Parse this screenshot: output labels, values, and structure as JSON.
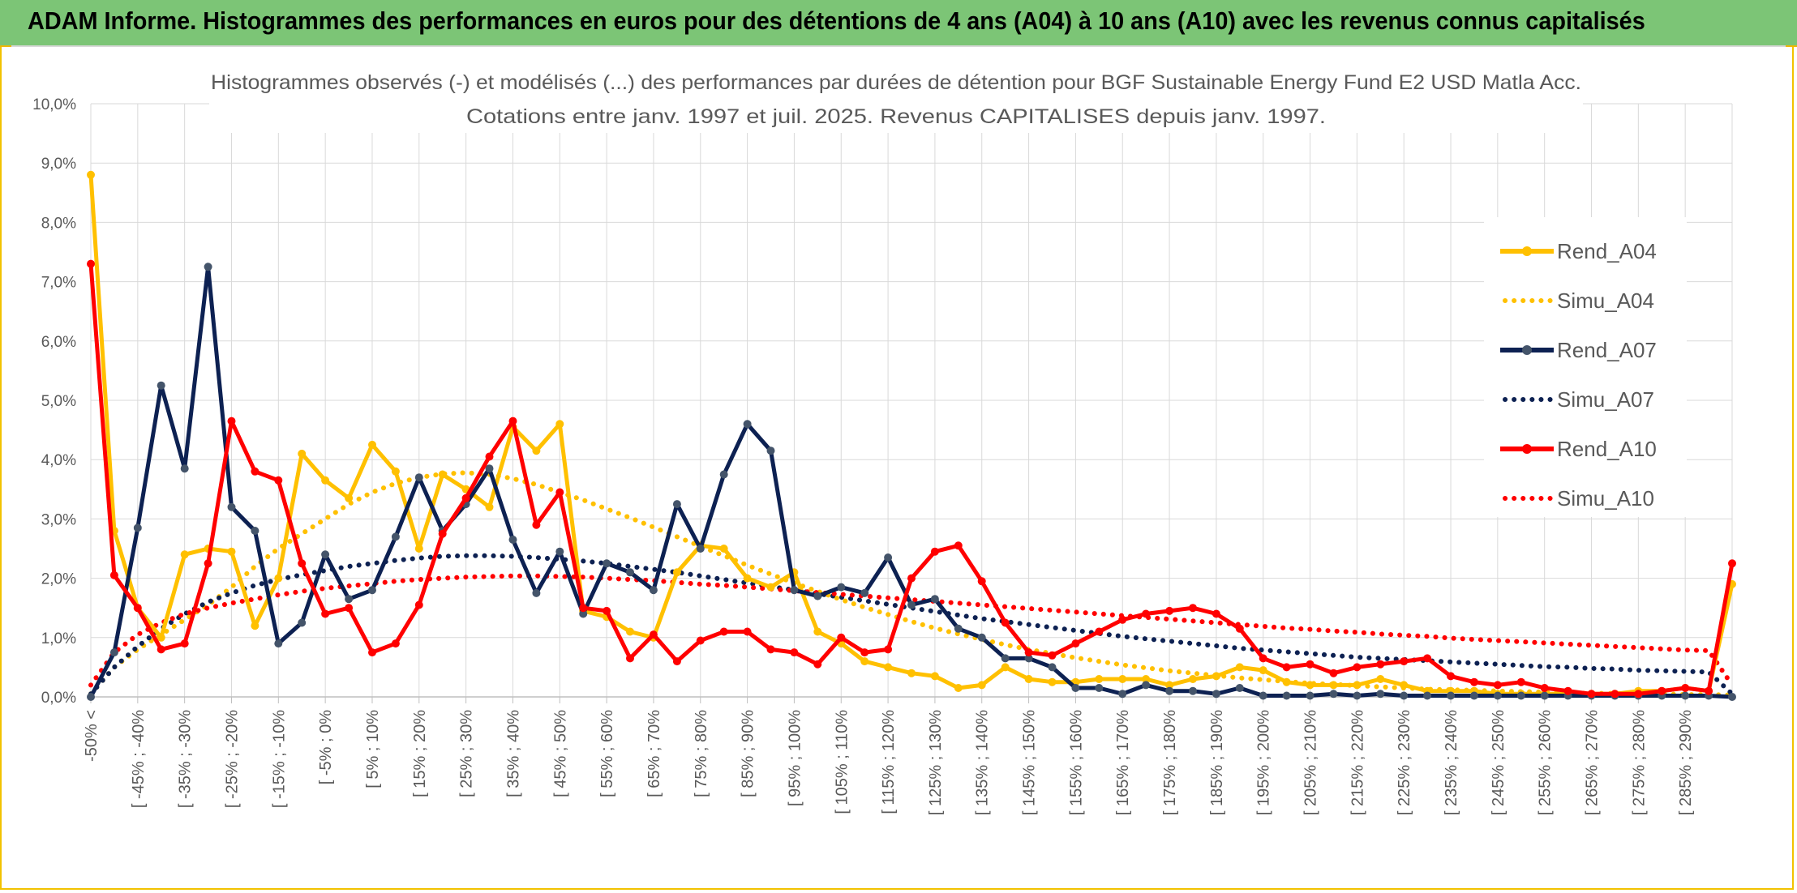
{
  "banner": {
    "title": "ADAM Informe. Histogrammes des performances en euros pour des détentions de 4 ans (A04) à 10 ans (A10) avec les revenus connus capitalisés"
  },
  "colors": {
    "banner_bg": "#7cc576",
    "frame": "#f2c200",
    "a04": "#ffc000",
    "a07": "#0d2152",
    "a10": "#ff0000",
    "grid": "#d9d9d9",
    "text": "#595959"
  },
  "chart_data": {
    "type": "line",
    "title": "Histogrammes observés (-) et modélisés (...) des performances par durées de détention pour BGF Sustainable Energy Fund E2 USD Matla Acc.",
    "subtitle": "Cotations entre janv. 1997 et juil. 2025. Revenus CAPITALISES depuis janv. 1997.",
    "xlabel": "",
    "ylabel": "",
    "ylim": [
      0,
      10
    ],
    "y_ticks": [
      "0,0%",
      "1,0%",
      "2,0%",
      "3,0%",
      "4,0%",
      "5,0%",
      "6,0%",
      "7,0%",
      "8,0%",
      "9,0%",
      "10,0%"
    ],
    "grid": "vertical and horizontal",
    "legend_position": "right",
    "categories": [
      "-50% <",
      "[ -50% ; -45%",
      "[ -45% ; -40%",
      "[ -40% ; -35%",
      "[ -35% ; -30%",
      "[ -30% ; -25%",
      "[ -25% ; -20%",
      "[ -20% ; -15%",
      "[ -15% ; -10%",
      "[ -10% ; -5%",
      "[ -5% ; 0%",
      "[ 0% ; 5%",
      "[ 5% ; 10%",
      "[ 10% ; 15%",
      "[ 15% ; 20%",
      "[ 20% ; 25%",
      "[ 25% ; 30%",
      "[ 30% ; 35%",
      "[ 35% ; 40%",
      "[ 40% ; 45%",
      "[ 45% ; 50%",
      "[ 50% ; 55%",
      "[ 55% ; 60%",
      "[ 60% ; 65%",
      "[ 65% ; 70%",
      "[ 70% ; 75%",
      "[ 75% ; 80%",
      "[ 80% ; 85%",
      "[ 85% ; 90%",
      "[ 90% ; 95%",
      "[ 95% ; 100%",
      "[ 100% ; 105%",
      "[ 105% ; 110%",
      "[ 110% ; 115%",
      "[ 115% ; 120%",
      "[ 120% ; 125%",
      "[ 125% ; 130%",
      "[ 130% ; 135%",
      "[ 135% ; 140%",
      "[ 140% ; 145%",
      "[ 145% ; 150%",
      "[ 150% ; 155%",
      "[ 155% ; 160%",
      "[ 160% ; 165%",
      "[ 165% ; 170%",
      "[ 170% ; 175%",
      "[ 175% ; 180%",
      "[ 180% ; 185%",
      "[ 185% ; 190%",
      "[ 190% ; 195%",
      "[ 195% ; 200%",
      "[ 200% ; 205%",
      "[ 205% ; 210%",
      "[ 210% ; 215%",
      "[ 215% ; 220%",
      "[ 220% ; 225%",
      "[ 225% ; 230%",
      "[ 230% ; 235%",
      "[ 235% ; 240%",
      "[ 240% ; 245%",
      "[ 245% ; 250%",
      "[ 250% ; 255%",
      "[ 255% ; 260%",
      "[ 260% ; 265%",
      "[ 265% ; 270%",
      "[ 270% ; 275%",
      "[ 275% ; 280%",
      "[ 280% ; 285%",
      "[ 285% ; 290%",
      "[ 290% ; 295%",
      "[ 295% ; 300%"
    ],
    "tick_labels": [
      "-50% <",
      "[ -45% ; -40%",
      "[ -35% ; -30%",
      "[ -25% ; -20%",
      "[ -15% ; -10%",
      "[ -5% ; 0%",
      "[ 5% ; 10%",
      "[ 15% ; 20%",
      "[ 25% ; 30%",
      "[ 35% ; 40%",
      "[ 45% ; 50%",
      "[ 55% ; 60%",
      "[ 65% ; 70%",
      "[ 75% ; 80%",
      "[ 85% ; 90%",
      "[ 95% ; 100%",
      "[ 105% ; 110%",
      "[ 115% ; 120%",
      "[ 125% ; 130%",
      "[ 135% ; 140%",
      "[ 145% ; 150%",
      "[ 155% ; 160%",
      "[ 165% ; 170%",
      "[ 175% ; 180%",
      "[ 185% ; 190%",
      "[ 195% ; 200%",
      "[ 205% ; 210%",
      "[ 215% ; 220%",
      "[ 225% ; 230%",
      "[ 235% ; 240%",
      "[ 245% ; 250%",
      "[ 255% ; 260%",
      "[ 265% ; 270%",
      "[ 275% ; 280%",
      "[ 285% ; 290%"
    ],
    "series": [
      {
        "name": "Rend_A04",
        "style": "solid",
        "color": "#ffc000",
        "values": [
          8.8,
          2.8,
          1.5,
          1.0,
          2.4,
          2.5,
          2.45,
          1.2,
          2.0,
          4.1,
          3.65,
          3.35,
          4.25,
          3.8,
          2.5,
          3.75,
          3.5,
          3.2,
          4.55,
          4.15,
          4.6,
          1.45,
          1.35,
          1.1,
          1.0,
          2.1,
          2.55,
          2.5,
          2.0,
          1.85,
          2.1,
          1.1,
          0.9,
          0.6,
          0.5,
          0.4,
          0.35,
          0.15,
          0.2,
          0.5,
          0.3,
          0.25,
          0.25,
          0.3,
          0.3,
          0.3,
          0.2,
          0.3,
          0.35,
          0.5,
          0.45,
          0.25,
          0.2,
          0.2,
          0.2,
          0.3,
          0.2,
          0.1,
          0.1,
          0.1,
          0.05,
          0.05,
          0.05,
          0.05,
          0.05,
          0.05,
          0.1,
          0.1,
          0.15,
          0.1,
          1.9
        ]
      },
      {
        "name": "Simu_A04",
        "style": "dotted",
        "color": "#ffc000",
        "values": [
          0.05,
          0.5,
          0.8,
          1.05,
          1.3,
          1.55,
          1.85,
          2.2,
          2.5,
          2.75,
          3.0,
          3.25,
          3.45,
          3.6,
          3.7,
          3.76,
          3.78,
          3.75,
          3.68,
          3.58,
          3.45,
          3.32,
          3.17,
          3.02,
          2.86,
          2.7,
          2.54,
          2.38,
          2.22,
          2.07,
          1.92,
          1.78,
          1.64,
          1.51,
          1.39,
          1.27,
          1.16,
          1.06,
          0.97,
          0.88,
          0.8,
          0.73,
          0.66,
          0.6,
          0.54,
          0.49,
          0.44,
          0.4,
          0.36,
          0.32,
          0.29,
          0.26,
          0.23,
          0.21,
          0.19,
          0.17,
          0.15,
          0.13,
          0.12,
          0.11,
          0.1,
          0.09,
          0.08,
          0.07,
          0.06,
          0.06,
          0.05,
          0.05,
          0.04,
          0.04,
          0.03
        ]
      },
      {
        "name": "Rend_A07",
        "style": "solid",
        "color": "#0d2152",
        "values": [
          0.0,
          0.75,
          2.85,
          5.25,
          3.85,
          7.25,
          3.2,
          2.8,
          0.9,
          1.25,
          2.4,
          1.65,
          1.8,
          2.7,
          3.7,
          2.8,
          3.25,
          3.85,
          2.65,
          1.75,
          2.45,
          1.4,
          2.25,
          2.1,
          1.8,
          3.25,
          2.5,
          3.75,
          4.6,
          4.15,
          1.8,
          1.7,
          1.85,
          1.75,
          2.35,
          1.55,
          1.65,
          1.15,
          1.0,
          0.65,
          0.65,
          0.5,
          0.15,
          0.15,
          0.05,
          0.2,
          0.1,
          0.1,
          0.05,
          0.15,
          0.02,
          0.02,
          0.02,
          0.05,
          0.02,
          0.05,
          0.02,
          0.02,
          0.02,
          0.02,
          0.02,
          0.02,
          0.02,
          0.02,
          0.02,
          0.02,
          0.02,
          0.02,
          0.02,
          0.02,
          0.0
        ]
      },
      {
        "name": "Simu_A07",
        "style": "dotted",
        "color": "#0d2152",
        "values": [
          0.05,
          0.5,
          0.85,
          1.15,
          1.4,
          1.6,
          1.75,
          1.88,
          1.98,
          2.06,
          2.13,
          2.2,
          2.25,
          2.3,
          2.34,
          2.37,
          2.38,
          2.38,
          2.37,
          2.35,
          2.32,
          2.29,
          2.25,
          2.2,
          2.15,
          2.1,
          2.04,
          1.98,
          1.92,
          1.86,
          1.8,
          1.74,
          1.68,
          1.62,
          1.56,
          1.5,
          1.44,
          1.38,
          1.32,
          1.27,
          1.22,
          1.17,
          1.12,
          1.07,
          1.02,
          0.98,
          0.94,
          0.9,
          0.86,
          0.82,
          0.79,
          0.76,
          0.73,
          0.7,
          0.67,
          0.65,
          0.63,
          0.61,
          0.59,
          0.57,
          0.55,
          0.53,
          0.51,
          0.5,
          0.48,
          0.47,
          0.45,
          0.44,
          0.43,
          0.42,
          0.05
        ]
      },
      {
        "name": "Rend_A10",
        "style": "solid",
        "color": "#ff0000",
        "values": [
          7.3,
          2.05,
          1.5,
          0.8,
          0.9,
          2.25,
          4.65,
          3.8,
          3.65,
          2.25,
          1.4,
          1.5,
          0.75,
          0.9,
          1.55,
          2.75,
          3.35,
          4.05,
          4.65,
          2.9,
          3.45,
          1.5,
          1.45,
          0.65,
          1.05,
          0.6,
          0.95,
          1.1,
          1.1,
          0.8,
          0.75,
          0.55,
          1.0,
          0.75,
          0.8,
          2.0,
          2.45,
          2.55,
          1.95,
          1.25,
          0.75,
          0.7,
          0.9,
          1.1,
          1.3,
          1.4,
          1.45,
          1.5,
          1.4,
          1.15,
          0.65,
          0.5,
          0.55,
          0.4,
          0.5,
          0.55,
          0.6,
          0.65,
          0.35,
          0.25,
          0.2,
          0.25,
          0.15,
          0.1,
          0.05,
          0.05,
          0.05,
          0.1,
          0.15,
          0.1,
          2.25
        ]
      },
      {
        "name": "Simu_A10",
        "style": "dotted",
        "color": "#ff0000",
        "values": [
          0.2,
          0.75,
          1.05,
          1.25,
          1.4,
          1.5,
          1.58,
          1.65,
          1.72,
          1.78,
          1.83,
          1.87,
          1.91,
          1.95,
          1.98,
          2.0,
          2.02,
          2.03,
          2.04,
          2.04,
          2.03,
          2.02,
          2.0,
          1.98,
          1.96,
          1.93,
          1.9,
          1.88,
          1.85,
          1.82,
          1.79,
          1.76,
          1.73,
          1.7,
          1.67,
          1.64,
          1.61,
          1.58,
          1.55,
          1.52,
          1.49,
          1.46,
          1.43,
          1.4,
          1.37,
          1.34,
          1.31,
          1.28,
          1.25,
          1.22,
          1.19,
          1.16,
          1.14,
          1.11,
          1.09,
          1.06,
          1.04,
          1.02,
          0.99,
          0.97,
          0.95,
          0.93,
          0.91,
          0.89,
          0.87,
          0.85,
          0.83,
          0.81,
          0.79,
          0.78,
          0.2
        ]
      }
    ]
  }
}
